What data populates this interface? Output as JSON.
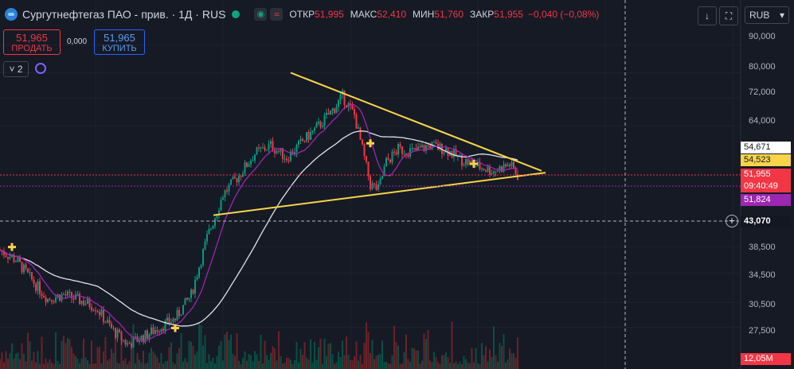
{
  "header": {
    "title": "Сургутнефтегаз ПАО - прив. · 1Д · RUS",
    "ohlc": {
      "open_label": "ОТКР",
      "open": "51,995",
      "high_label": "МАКС",
      "high": "52,410",
      "low_label": "МИН",
      "low": "51,760",
      "close_label": "ЗАКР",
      "close": "51,955",
      "change": "−0,040 (−0,08%)"
    },
    "currency": "RUB"
  },
  "trade": {
    "sell_price": "51,965",
    "sell_label": "ПРОДАТЬ",
    "spread": "0,000",
    "buy_price": "51,965",
    "buy_label": "КУПИТЬ"
  },
  "indicators": {
    "collapsed_count": "2"
  },
  "axis": {
    "ticks": [
      "90,000",
      "80,000",
      "72,000",
      "64,000",
      "38,500",
      "34,500",
      "30,500",
      "27,500"
    ],
    "labels": {
      "ma_white": "54,671",
      "ma_yellow": "54,523",
      "last_price": "51,955",
      "countdown": "09:40:49",
      "ma_purple": "51,824",
      "crosshair": "43,070",
      "volume": "12,05M"
    }
  },
  "colors": {
    "bg": "#161a25",
    "up": "#089981",
    "down": "#f23645",
    "ma_slow": "#e0e3eb",
    "ma_fast": "#9c27b0",
    "trend": "#f7d44a"
  },
  "chart_data": {
    "type": "candlestick",
    "scale": "log",
    "ylim": [
      25000,
      95000
    ],
    "y_ticks": [
      27500,
      30500,
      34500,
      38500,
      64000,
      72000,
      80000,
      90000
    ],
    "close_path": [
      [
        0,
        38000
      ],
      [
        20,
        36500
      ],
      [
        40,
        33500
      ],
      [
        60,
        31000
      ],
      [
        80,
        31500
      ],
      [
        100,
        30800
      ],
      [
        120,
        30000
      ],
      [
        140,
        27300
      ],
      [
        160,
        25600
      ],
      [
        180,
        26400
      ],
      [
        200,
        27500
      ],
      [
        220,
        28500
      ],
      [
        240,
        31500
      ],
      [
        260,
        40000
      ],
      [
        280,
        48000
      ],
      [
        300,
        52000
      ],
      [
        320,
        57000
      ],
      [
        340,
        59000
      ],
      [
        360,
        56000
      ],
      [
        380,
        60000
      ],
      [
        400,
        64000
      ],
      [
        420,
        69000
      ],
      [
        430,
        72500
      ],
      [
        445,
        67000
      ],
      [
        455,
        58000
      ],
      [
        465,
        50000
      ],
      [
        475,
        49000
      ],
      [
        485,
        55000
      ],
      [
        500,
        58000
      ],
      [
        520,
        57500
      ],
      [
        540,
        59000
      ],
      [
        560,
        58000
      ],
      [
        580,
        55500
      ],
      [
        600,
        54000
      ],
      [
        620,
        53000
      ],
      [
        640,
        54500
      ],
      [
        650,
        51955
      ]
    ],
    "trend_upper": [
      [
        365,
        80000
      ],
      [
        680,
        53000
      ]
    ],
    "trend_lower": [
      [
        268,
        44000
      ],
      [
        685,
        52600
      ]
    ]
  }
}
